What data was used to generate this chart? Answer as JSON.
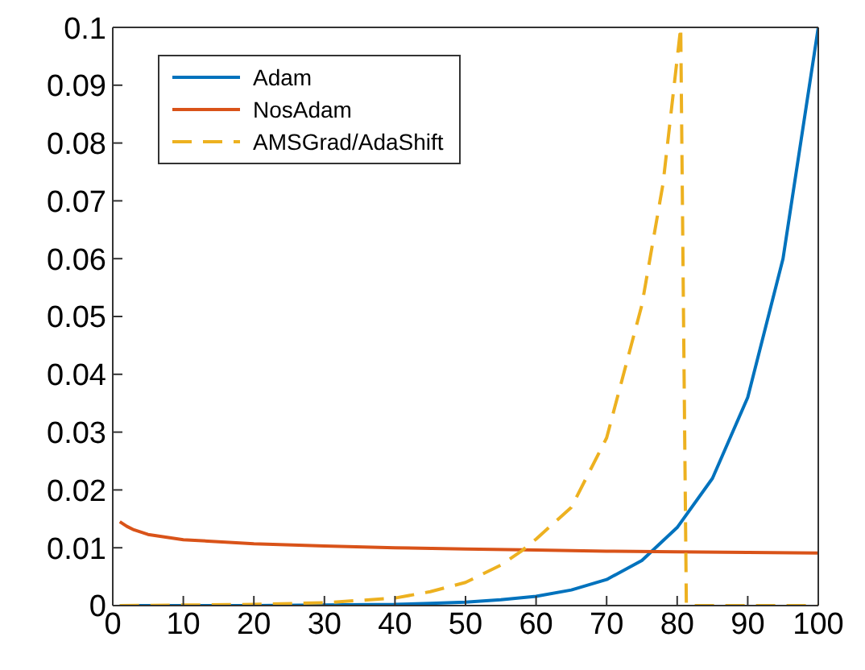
{
  "chart_data": {
    "type": "line",
    "xlim": [
      0,
      100
    ],
    "ylim": [
      0,
      0.1
    ],
    "xticks": [
      0,
      10,
      20,
      30,
      40,
      50,
      60,
      70,
      80,
      90,
      100
    ],
    "yticks": [
      0,
      0.01,
      0.02,
      0.03,
      0.04,
      0.05,
      0.06,
      0.07,
      0.08,
      0.09,
      0.1
    ],
    "grid": false,
    "legend": "top left",
    "marker": "none",
    "series": [
      {
        "name": "Adam",
        "color": "#0072bd",
        "line_style": "solid",
        "x": [
          1,
          10,
          20,
          30,
          40,
          45,
          50,
          55,
          60,
          65,
          70,
          75,
          80,
          85,
          90,
          95,
          100
        ],
        "values": [
          0,
          0,
          0,
          0.0001,
          0.0002,
          0.0004,
          0.0006,
          0.001,
          0.0016,
          0.0027,
          0.0045,
          0.0078,
          0.0135,
          0.022,
          0.036,
          0.06,
          0.1
        ]
      },
      {
        "name": "NosAdam",
        "color": "#d95319",
        "line_style": "solid",
        "x": [
          1,
          2,
          3,
          5,
          10,
          20,
          30,
          40,
          50,
          60,
          70,
          80,
          90,
          100
        ],
        "values": [
          0.0145,
          0.0137,
          0.0131,
          0.0123,
          0.0114,
          0.0107,
          0.0103,
          0.01,
          0.0098,
          0.0096,
          0.0094,
          0.0093,
          0.0092,
          0.0091
        ]
      },
      {
        "name": "AMSGrad/AdaShift",
        "color": "#edb120",
        "line_style": "dashed",
        "x": [
          1,
          20,
          30,
          40,
          45,
          50,
          55,
          58,
          60,
          65,
          70,
          75,
          78,
          80.5,
          81.3,
          90,
          100
        ],
        "values": [
          0,
          0.0002,
          0.0005,
          0.0013,
          0.0024,
          0.004,
          0.007,
          0.0095,
          0.0115,
          0.017,
          0.029,
          0.052,
          0.073,
          0.1,
          0,
          0,
          0
        ]
      }
    ]
  }
}
